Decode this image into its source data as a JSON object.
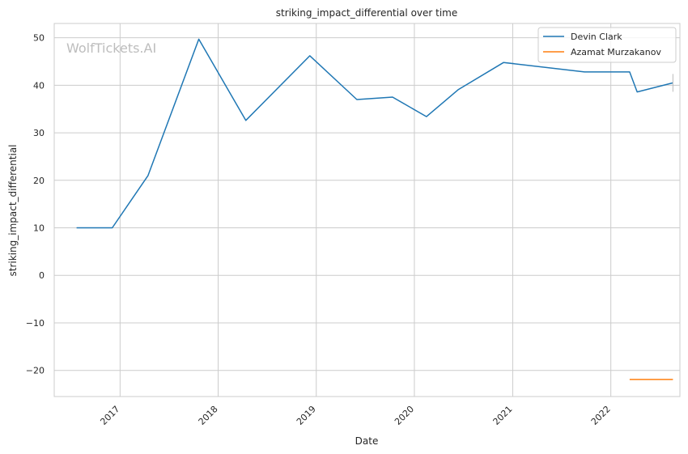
{
  "watermark": "WolfTickets.AI",
  "chart_data": {
    "type": "line",
    "title": "striking_impact_differential over time",
    "xlabel": "Date",
    "ylabel": "striking_impact_differential",
    "x_ticks": [
      "2017",
      "2018",
      "2019",
      "2020",
      "2021",
      "2022"
    ],
    "y_ticks": [
      50,
      40,
      30,
      20,
      10,
      0,
      -10,
      -20
    ],
    "y_tick_labels": [
      "50",
      "40",
      "30",
      "20",
      "10",
      "0",
      "−10",
      "−20"
    ],
    "xlim": [
      "2016-05-01",
      "2022-09-15"
    ],
    "ylim": [
      -25.5,
      53
    ],
    "grid": true,
    "legend_position": "top-right",
    "series": [
      {
        "name": "Devin Clark",
        "color": "#1f77b4",
        "points": [
          {
            "x": "2016-07-23",
            "y": 10
          },
          {
            "x": "2016-12-03",
            "y": 10
          },
          {
            "x": "2017-04-15",
            "y": 21
          },
          {
            "x": "2017-10-21",
            "y": 49.7
          },
          {
            "x": "2018-04-14",
            "y": 32.6
          },
          {
            "x": "2018-12-08",
            "y": 46.2
          },
          {
            "x": "2019-06-01",
            "y": 37
          },
          {
            "x": "2019-10-12",
            "y": 37.5
          },
          {
            "x": "2020-02-15",
            "y": 33.4
          },
          {
            "x": "2020-06-13",
            "y": 39.1
          },
          {
            "x": "2020-11-28",
            "y": 44.8
          },
          {
            "x": "2021-09-25",
            "y": 42.8
          },
          {
            "x": "2022-03-12",
            "y": 42.8
          },
          {
            "x": "2022-04-09",
            "y": 38.6
          },
          {
            "x": "2022-08-20",
            "y": 40.5
          }
        ]
      },
      {
        "name": "Azamat Murzakanov",
        "color": "#ff7f0e",
        "points": [
          {
            "x": "2022-03-12",
            "y": -21.9
          },
          {
            "x": "2022-08-20",
            "y": -21.9
          }
        ]
      }
    ]
  }
}
